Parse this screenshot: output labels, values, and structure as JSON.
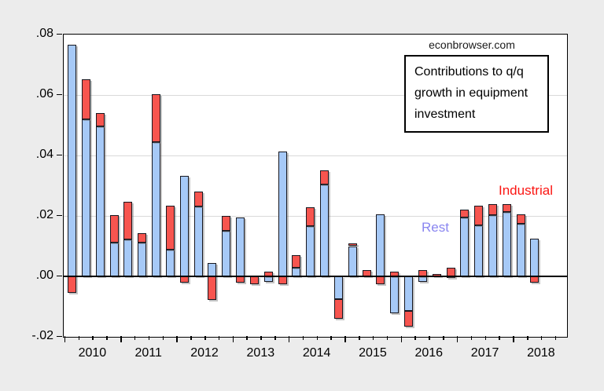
{
  "page": {
    "watermark": "econbrowser.com"
  },
  "annotation_box": {
    "text": "Contributions to q/q growth in equipment investment"
  },
  "series_labels": {
    "industrial": "Industrial",
    "rest": "Rest"
  },
  "colors": {
    "background": "#ececec",
    "plot_background": "#ffffff",
    "rest_fill": "#a6c9f7",
    "industrial_fill": "#f7554f",
    "bar_outline": "#17171f",
    "gridline": "#d9d9d9",
    "axis": "#000000",
    "zero_line": "#000000",
    "rest_label_color": "#8a86f0",
    "industrial_label_color": "#fb1512"
  },
  "chart_data": {
    "type": "bar",
    "stacked": true,
    "title": "Contributions to q/q growth in equipment investment",
    "xlabel": "",
    "ylabel": "",
    "ylim": [
      -0.02,
      0.08
    ],
    "grid": true,
    "legend_position": "in-plot colored text labels (Rest, Industrial)",
    "ytick_values": [
      0.08,
      0.06,
      0.04,
      0.02,
      0.0,
      -0.02
    ],
    "ytick_labels": [
      ".08",
      ".06",
      ".04",
      ".02",
      ".00",
      "-.02"
    ],
    "gridline_values": [
      0.06,
      0.04,
      0.02
    ],
    "year_labels": [
      "2010",
      "2011",
      "2012",
      "2013",
      "2014",
      "2015",
      "2016",
      "2017",
      "2018"
    ],
    "categories": [
      "2010Q1",
      "2010Q2",
      "2010Q3",
      "2010Q4",
      "2011Q1",
      "2011Q2",
      "2011Q3",
      "2011Q4",
      "2012Q1",
      "2012Q2",
      "2012Q3",
      "2012Q4",
      "2013Q1",
      "2013Q2",
      "2013Q3",
      "2013Q4",
      "2014Q1",
      "2014Q2",
      "2014Q3",
      "2014Q4",
      "2015Q1",
      "2015Q2",
      "2015Q3",
      "2015Q4",
      "2016Q1",
      "2016Q2",
      "2016Q3",
      "2016Q4",
      "2017Q1",
      "2017Q2",
      "2017Q3",
      "2017Q4",
      "2018Q1",
      "2018Q2"
    ],
    "series": [
      {
        "name": "Rest",
        "color": "#a6c9f7",
        "values": [
          0.0765,
          0.052,
          0.0497,
          0.0111,
          0.0121,
          0.0112,
          0.0443,
          0.0089,
          0.0333,
          0.0231,
          0.0045,
          0.015,
          0.0195,
          0.0,
          -0.0019,
          0.0412,
          0.0028,
          0.0165,
          0.0304,
          -0.0075,
          0.01,
          0.0,
          0.0205,
          -0.0122,
          -0.0113,
          -0.0019,
          0.0,
          -0.0005,
          0.0195,
          0.017,
          0.0203,
          0.0212,
          0.0174,
          0.0125
        ]
      },
      {
        "name": "Industrial",
        "color": "#f7554f",
        "values": [
          -0.0055,
          0.0132,
          0.0042,
          0.0092,
          0.0127,
          0.0031,
          0.016,
          0.0145,
          -0.002,
          0.005,
          -0.0077,
          0.0049,
          -0.002,
          -0.0025,
          0.0016,
          -0.0025,
          0.0043,
          0.0063,
          0.0046,
          -0.0065,
          0.001,
          0.0021,
          -0.0025,
          0.0015,
          -0.0052,
          0.0022,
          0.0008,
          0.0028,
          0.0025,
          0.0063,
          0.0035,
          0.0028,
          0.0032,
          -0.0022
        ]
      }
    ]
  }
}
